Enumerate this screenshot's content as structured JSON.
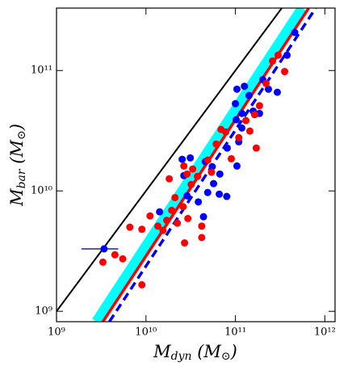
{
  "chart_data": {
    "type": "scatter",
    "xlabel": [
      "M",
      "dyn",
      " (M",
      "⊙",
      ")"
    ],
    "ylabel": [
      "M",
      "bar",
      " (M",
      "⊙",
      ")"
    ],
    "xscale": "log",
    "yscale": "log",
    "xlim": [
      1000000000.0,
      1300000000000.0
    ],
    "ylim": [
      820000000.0,
      330000000000.0
    ],
    "xticks": [
      {
        "value": 1000000000.0,
        "label": "10⁹"
      },
      {
        "value": 10000000000.0,
        "label": "10¹⁰"
      },
      {
        "value": 100000000000.0,
        "label": "10¹¹"
      },
      {
        "value": 1000000000000.0,
        "label": "10¹²"
      }
    ],
    "yticks": [
      {
        "value": 1000000000.0,
        "label": "10⁹"
      },
      {
        "value": 10000000000.0,
        "label": "10¹⁰"
      },
      {
        "value": 100000000000.0,
        "label": "10¹¹"
      }
    ],
    "lines": [
      {
        "color": "#00ffff",
        "width": 13,
        "dash": false,
        "x": [
          2800000000.0,
          560000000000.0
        ],
        "values": [
          820000000.0,
          330000000000.0
        ]
      },
      {
        "color": "#000000",
        "width": 2,
        "dash": false,
        "x": [
          1000000000.0,
          330000000000.0
        ],
        "values": [
          1000000000.0,
          330000000000.0
        ]
      },
      {
        "color": "#ff0000",
        "width": 3.5,
        "dash": false,
        "x": [
          3300000000.0,
          660000000000.0
        ],
        "values": [
          820000000.0,
          330000000000.0
        ]
      },
      {
        "color": "#0000ff",
        "width": 3.5,
        "dash": true,
        "x": [
          3900000000.0,
          790000000000.0
        ],
        "values": [
          820000000.0,
          330000000000.0
        ]
      }
    ],
    "series": [
      {
        "color": "#0000ff",
        "x": [
          3400000000.0,
          14200000000.0,
          26500000000.0,
          25400000000.0,
          31300000000.0,
          46000000000.0,
          55000000000.0,
          28800000000.0,
          38500000000.0,
          49000000000.0,
          57000000000.0,
          66000000000.0,
          80000000000.0,
          44000000000.0,
          67000000000.0,
          81000000000.0,
          104000000000.0,
          109000000000.0,
          118000000000.0,
          100000000000.0,
          104000000000.0,
          126000000000.0,
          142000000000.0,
          158000000000.0,
          186000000000.0,
          202000000000.0,
          234000000000.0,
          294000000000.0,
          378000000000.0,
          460000000000.0,
          102000000000.0,
          118000000000.0
        ],
        "values": [
          3300000000.0,
          6700000000.0,
          13400000000.0,
          18300000000.0,
          18800000000.0,
          17500000000.0,
          15900000000.0,
          9100000000.0,
          8100000000.0,
          9700000000.0,
          11500000000.0,
          9400000000.0,
          9000000000.0,
          6100000000.0,
          13800000000.0,
          22700000000.0,
          16100000000.0,
          25600000000.0,
          33300000000.0,
          53000000000.0,
          70000000000.0,
          74000000000.0,
          62000000000.0,
          46000000000.0,
          44000000000.0,
          84000000000.0,
          70000000000.0,
          66000000000.0,
          134000000000.0,
          207000000000.0,
          39000000000.0,
          44000000000.0
        ],
        "xerr": [
          [
            1500000000.0,
            1500000000.0
          ],
          null,
          null,
          null,
          null,
          null,
          null,
          null,
          null,
          null,
          null,
          null,
          null,
          null,
          null,
          null,
          null,
          null,
          null,
          null,
          null,
          null,
          null,
          null,
          null,
          null,
          null,
          null,
          null,
          null,
          null,
          null
        ]
      },
      {
        "color": "#ff0000",
        "x": [
          3300000000.0,
          4500000000.0,
          5500000000.0,
          6600000000.0,
          9000000000.0,
          9000000000.0,
          11100000000.0,
          13600000000.0,
          15500000000.0,
          17100000000.0,
          18200000000.0,
          19400000000.0,
          21100000000.0,
          22400000000.0,
          26000000000.0,
          27000000000.0,
          29400000000.0,
          32000000000.0,
          33300000000.0,
          37700000000.0,
          42000000000.0,
          42000000000.0,
          49000000000.0,
          54000000000.0,
          61000000000.0,
          69000000000.0,
          78000000000.0,
          90000000000.0,
          109000000000.0,
          131000000000.0,
          145000000000.0,
          164000000000.0,
          171000000000.0,
          186000000000.0,
          220000000000.0,
          260000000000.0,
          300000000000.0,
          355000000000.0,
          26500000000.0,
          28800000000.0
        ],
        "values": [
          2560000000.0,
          2950000000.0,
          2730000000.0,
          5000000000.0,
          4800000000.0,
          1660000000.0,
          6200000000.0,
          5100000000.0,
          4700000000.0,
          5700000000.0,
          12600000000.0,
          6900000000.0,
          8800000000.0,
          5400000000.0,
          7400000000.0,
          3700000000.0,
          5900000000.0,
          11300000000.0,
          15200000000.0,
          13200000000.0,
          4100000000.0,
          5100000000.0,
          18000000000.0,
          14300000000.0,
          24500000000.0,
          32400000000.0,
          30900000000.0,
          18500000000.0,
          27700000000.0,
          38400000000.0,
          31400000000.0,
          43000000000.0,
          22700000000.0,
          51000000000.0,
          78000000000.0,
          120000000000.0,
          134000000000.0,
          98000000000.0,
          16100000000.0,
          13800000000.0
        ]
      }
    ]
  }
}
